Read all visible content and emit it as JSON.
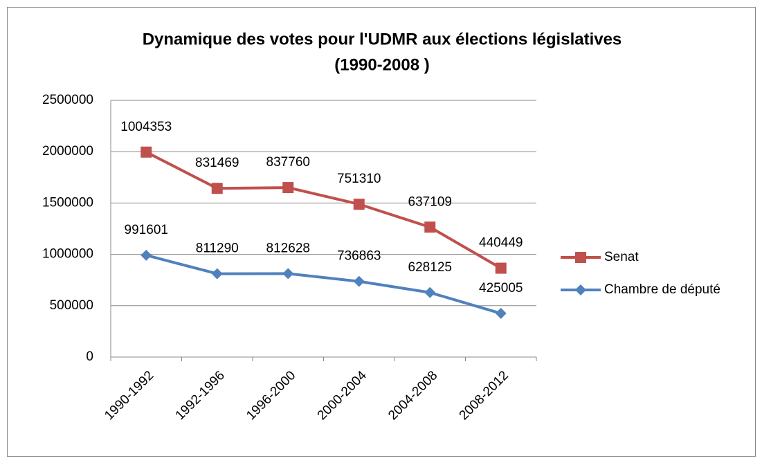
{
  "chart_data": {
    "type": "line",
    "stacked": true,
    "title": [
      "Dynamique des votes pour l'UDMR aux élections législatives",
      "(1990-2008 )"
    ],
    "categories": [
      "1990-1992",
      "1992-1996",
      "1996-2000",
      "2000-2004",
      "2004-2008",
      "2008-2012"
    ],
    "series": [
      {
        "name": "Chambre de député",
        "color": "#4f81bd",
        "marker": "diamond",
        "values": [
          991601,
          811290,
          812628,
          736863,
          628125,
          425005
        ]
      },
      {
        "name": "Senat",
        "color": "#c0504d",
        "marker": "square",
        "values": [
          1004353,
          831469,
          837760,
          751310,
          637109,
          440449
        ]
      }
    ],
    "ylim": [
      0,
      2500000
    ],
    "yticks": [
      0,
      500000,
      1000000,
      1500000,
      2000000,
      2500000
    ],
    "grid": true,
    "legend": "right"
  }
}
